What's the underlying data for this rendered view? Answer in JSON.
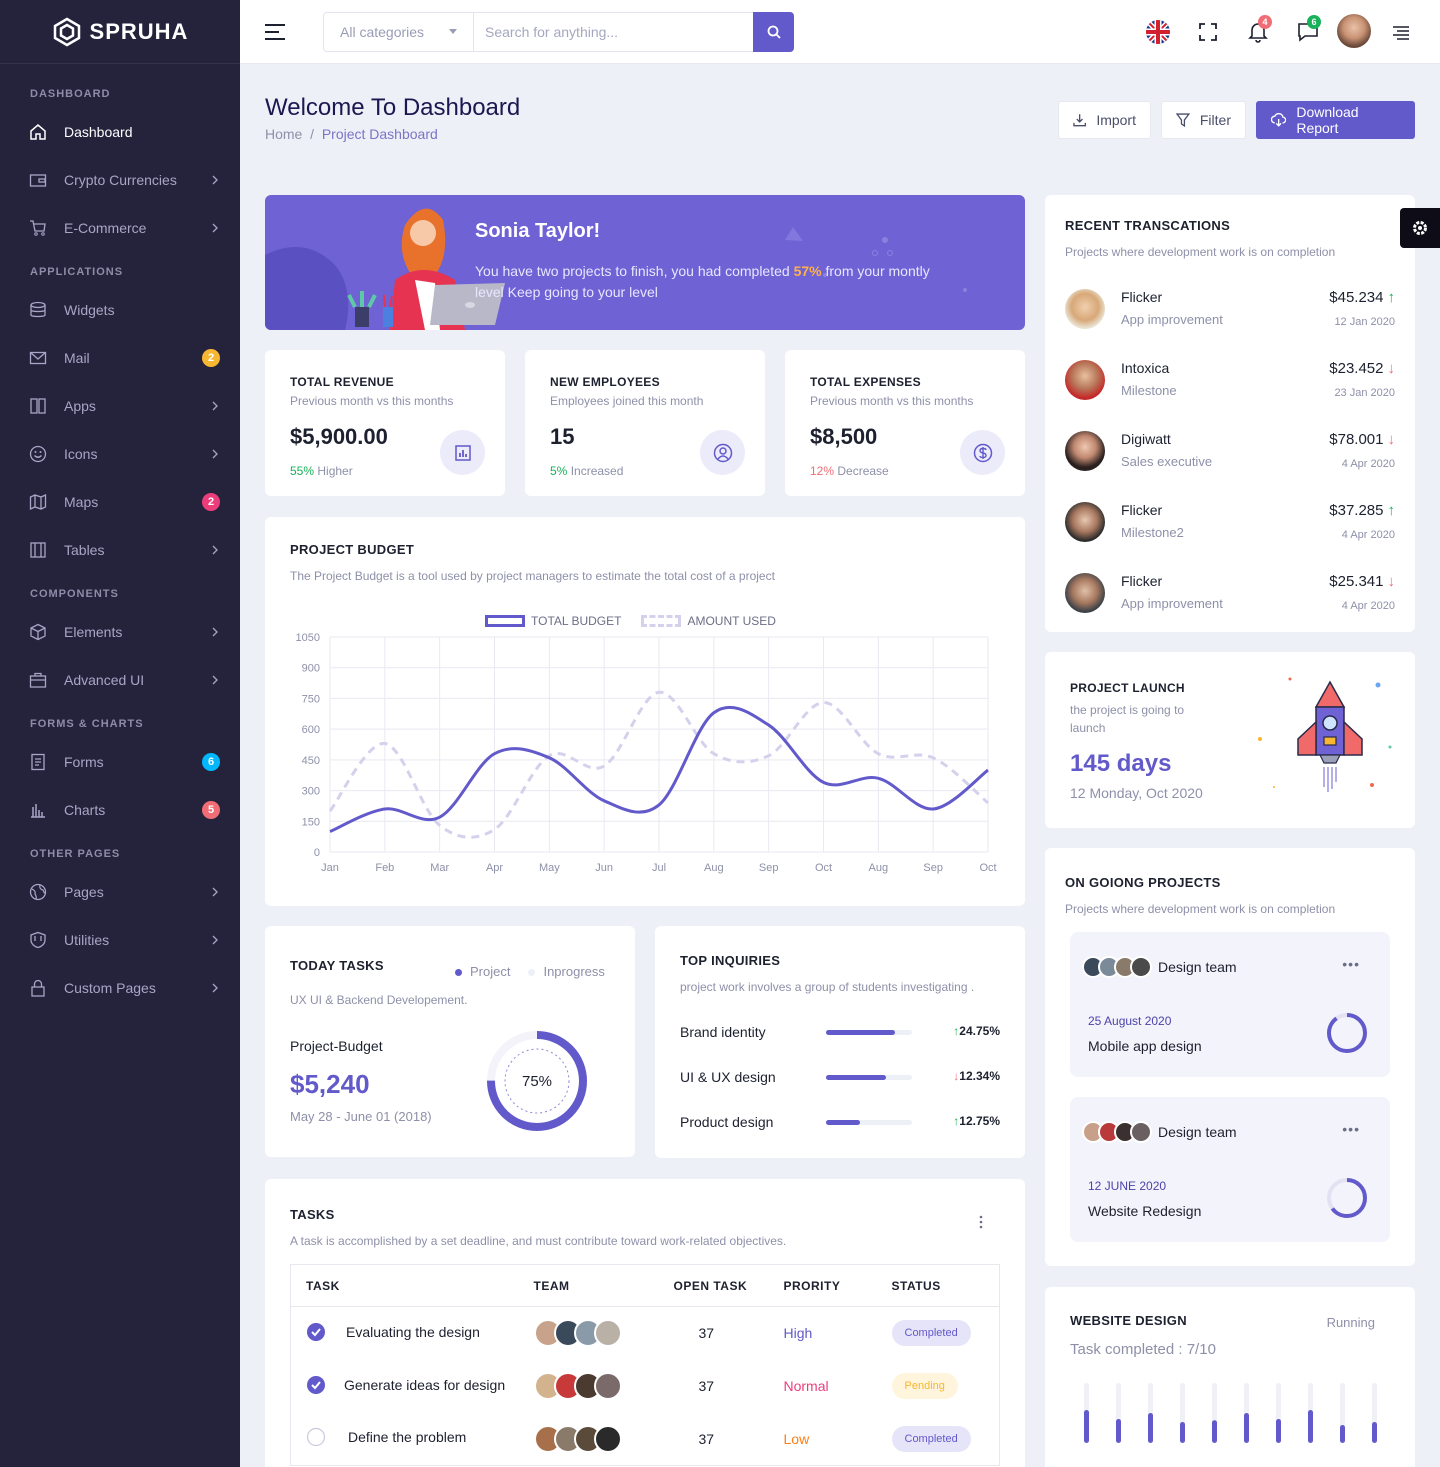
{
  "brand": {
    "name": "SPRUHA"
  },
  "sidebar": {
    "sections": [
      "DASHBOARD",
      "APPLICATIONS",
      "COMPONENTS",
      "FORMS & CHARTS",
      "OTHER PAGES"
    ],
    "items": [
      {
        "label": "Dashboard",
        "icon": "home-icon"
      },
      {
        "label": "Crypto Currencies",
        "icon": "wallet-icon"
      },
      {
        "label": "E-Commerce",
        "icon": "cart-icon"
      },
      {
        "label": "Widgets",
        "icon": "database-icon"
      },
      {
        "label": "Mail",
        "icon": "mail-icon",
        "badge": "2"
      },
      {
        "label": "Apps",
        "icon": "apps-icon"
      },
      {
        "label": "Icons",
        "icon": "smile-icon"
      },
      {
        "label": "Maps",
        "icon": "map-icon",
        "badge": "2"
      },
      {
        "label": "Tables",
        "icon": "table-icon"
      },
      {
        "label": "Elements",
        "icon": "box-icon"
      },
      {
        "label": "Advanced UI",
        "icon": "briefcase-icon"
      },
      {
        "label": "Forms",
        "icon": "form-icon",
        "badge": "6"
      },
      {
        "label": "Charts",
        "icon": "chart-icon",
        "badge": "5"
      },
      {
        "label": "Pages",
        "icon": "globe-icon"
      },
      {
        "label": "Utilities",
        "icon": "shield-icon"
      },
      {
        "label": "Custom Pages",
        "icon": "lock-icon"
      }
    ]
  },
  "header": {
    "category": "All categories",
    "search_placeholder": "Search for anything...",
    "notif_count": "4",
    "msg_count": "6"
  },
  "page": {
    "title": "Welcome To Dashboard",
    "crumb_home": "Home",
    "crumb_sep": "/",
    "crumb_current": "Project Dashboard",
    "import_label": "Import",
    "filter_label": "Filter",
    "download_label": "Download Report"
  },
  "banner": {
    "name": "Sonia Taylor!",
    "msg_before": "You have two projects to finish, you had completed ",
    "msg_pct": "57%",
    "msg_after": " from your montly level Keep going to your level"
  },
  "stats": [
    {
      "title": "TOTAL REVENUE",
      "sub": "Previous month vs this months",
      "value": "$5,900.00",
      "pct": "55%",
      "word": "Higher"
    },
    {
      "title": "NEW EMPLOYEES",
      "sub": "Employees joined this month",
      "value": "15",
      "pct": "5%",
      "word": "Increased"
    },
    {
      "title": "TOTAL EXPENSES",
      "sub": "Previous month vs this months",
      "value": "$8,500",
      "pct": "12%",
      "word": "Decrease"
    }
  ],
  "budget": {
    "title": "PROJECT BUDGET",
    "sub": "The Project Budget is a tool used by project managers to estimate the total cost of a project"
  },
  "chart_data": {
    "type": "line",
    "categories": [
      "Jan",
      "Feb",
      "Mar",
      "Apr",
      "May",
      "Jun",
      "Jul",
      "Aug",
      "Sep",
      "Oct",
      "Aug",
      "Sep",
      "Oct"
    ],
    "series": [
      {
        "name": "TOTAL BUDGET",
        "values": [
          100,
          210,
          170,
          480,
          460,
          250,
          230,
          680,
          620,
          340,
          360,
          210,
          400
        ]
      },
      {
        "name": "AMOUNT USED",
        "values": [
          200,
          530,
          130,
          110,
          470,
          420,
          780,
          480,
          470,
          730,
          480,
          460,
          240
        ]
      }
    ],
    "y_ticks": [
      "0",
      "150",
      "300",
      "450",
      "600",
      "750",
      "900",
      "1050"
    ],
    "ylim": [
      0,
      1050
    ],
    "grid": true,
    "legend": "top-center"
  },
  "today": {
    "title": "TODAY TASKS",
    "legend_a": "Project",
    "legend_b": "Inprogress",
    "sub": "UX UI & Backend Developement.",
    "label": "Project-Budget",
    "value": "$5,240",
    "dates": "May 28 - June 01 (2018)",
    "pct_text": "75%",
    "pct": 0.75
  },
  "inquiries": {
    "title": "TOP INQUIRIES",
    "sub": "project work involves a group of students investigating .",
    "rows": [
      {
        "label": "Brand identity",
        "pct": "24.75%",
        "fill": 0.8,
        "dir": "up"
      },
      {
        "label": "UI & UX design",
        "pct": "12.34%",
        "fill": 0.7,
        "dir": "down"
      },
      {
        "label": "Product design",
        "pct": "12.75%",
        "fill": 0.4,
        "dir": "up"
      }
    ]
  },
  "tasks": {
    "title": "TASKS",
    "sub": "A task is accomplished by a set deadline, and must contribute toward work-related objectives.",
    "headers": [
      "TASK",
      "TEAM",
      "OPEN TASK",
      "PRORITY",
      "STATUS"
    ],
    "rows": [
      {
        "task": "Evaluating the design",
        "open": "37",
        "priority": "High",
        "status": "Completed",
        "done": true
      },
      {
        "task": "Generate ideas for design",
        "open": "37",
        "priority": "Normal",
        "status": "Pending",
        "done": true
      },
      {
        "task": "Define the problem",
        "open": "37",
        "priority": "Low",
        "status": "Completed",
        "done": false
      }
    ]
  },
  "recent": {
    "title": "RECENT TRANSCATIONS",
    "sub": "Projects where development work is on completion",
    "rows": [
      {
        "name": "Flicker",
        "sub": "App improvement",
        "amount": "$45.234",
        "date": "12 Jan 2020",
        "dir": "up"
      },
      {
        "name": "Intoxica",
        "sub": "Milestone",
        "amount": "$23.452",
        "date": "23 Jan 2020",
        "dir": "down"
      },
      {
        "name": "Digiwatt",
        "sub": "Sales executive",
        "amount": "$78.001",
        "date": "4 Apr 2020",
        "dir": "down"
      },
      {
        "name": "Flicker",
        "sub": "Milestone2",
        "amount": "$37.285",
        "date": "4 Apr 2020",
        "dir": "up"
      },
      {
        "name": "Flicker",
        "sub": "App improvement",
        "amount": "$25.341",
        "date": "4 Apr 2020",
        "dir": "down"
      }
    ]
  },
  "launch": {
    "title": "PROJECT LAUNCH",
    "sub": "the project is going to launch",
    "days": "145 days",
    "date": "12 Monday, Oct 2020"
  },
  "ongoing": {
    "title": "ON GOIONG PROJECTS",
    "sub": "Projects where development work is on completion",
    "projects": [
      {
        "team": "Design team",
        "date": "25 August 2020",
        "name": "Mobile app design",
        "progress": 0.9
      },
      {
        "team": "Design team",
        "date": "12 JUNE 2020",
        "name": "Website Redesign",
        "progress": 0.65
      }
    ]
  },
  "website": {
    "title": "WEBSITE DESIGN",
    "status": "Running",
    "done": "Task completed : 7/10",
    "bars": [
      0.55,
      0.4,
      0.5,
      0.35,
      0.38,
      0.5,
      0.4,
      0.55,
      0.3,
      0.35
    ]
  },
  "colors": {
    "primary": "#6259ca",
    "sidebar": "#25233c",
    "success": "#19b159",
    "danger": "#f16d75",
    "warning": "#f7b731",
    "info": "#01b8ff",
    "pink": "#ec3d7b"
  }
}
